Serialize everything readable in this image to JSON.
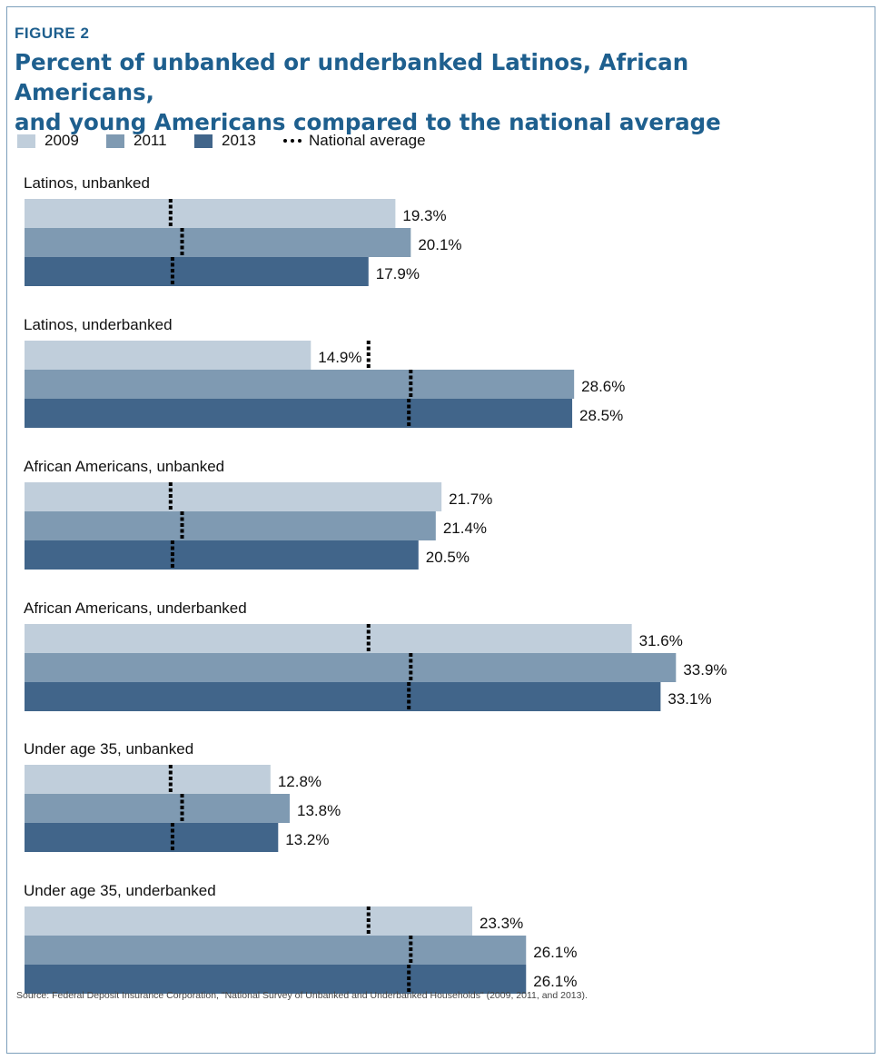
{
  "figure_label": "FIGURE 2",
  "title_line1": "Percent of unbanked or underbanked Latinos, African Americans,",
  "title_line2": "and young Americans compared to the national average",
  "source": "Source: Federal Deposit Insurance Corporation, \"National Survey of Unbanked and Underbanked Households\" (2009, 2011, and 2013).",
  "legend": [
    {
      "label": "2009",
      "color": "#c0cedb",
      "kind": "swatch"
    },
    {
      "label": "2011",
      "color": "#7f9ab2",
      "kind": "swatch"
    },
    {
      "label": "2013",
      "color": "#41658a",
      "kind": "swatch"
    },
    {
      "label": "National average",
      "color": "#000000",
      "kind": "dash"
    }
  ],
  "chart_data": {
    "type": "bar",
    "orientation": "horizontal",
    "xlim": [
      0,
      35
    ],
    "grid": false,
    "legend_position": "top-left",
    "series": [
      {
        "name": "2009",
        "color": "#c0cedb"
      },
      {
        "name": "2011",
        "color": "#7f9ab2"
      },
      {
        "name": "2013",
        "color": "#41658a"
      }
    ],
    "groups": [
      {
        "label": "Latinos, unbanked",
        "values": [
          19.3,
          20.1,
          17.9
        ],
        "value_labels": [
          "19.3%",
          "20.1%",
          "17.9%"
        ],
        "national_average": [
          7.6,
          8.2,
          7.7
        ]
      },
      {
        "label": "Latinos, underbanked",
        "values": [
          14.9,
          28.6,
          28.5
        ],
        "value_labels": [
          "14.9%",
          "28.6%",
          "28.5%"
        ],
        "national_average": [
          17.9,
          20.1,
          20.0
        ]
      },
      {
        "label": "African Americans, unbanked",
        "values": [
          21.7,
          21.4,
          20.5
        ],
        "value_labels": [
          "21.7%",
          "21.4%",
          "20.5%"
        ],
        "national_average": [
          7.6,
          8.2,
          7.7
        ]
      },
      {
        "label": "African Americans, underbanked",
        "values": [
          31.6,
          33.9,
          33.1
        ],
        "value_labels": [
          "31.6%",
          "33.9%",
          "33.1%"
        ],
        "national_average": [
          17.9,
          20.1,
          20.0
        ]
      },
      {
        "label": "Under age 35, unbanked",
        "values": [
          12.8,
          13.8,
          13.2
        ],
        "value_labels": [
          "12.8%",
          "13.8%",
          "13.2%"
        ],
        "national_average": [
          7.6,
          8.2,
          7.7
        ]
      },
      {
        "label": "Under age 35, underbanked",
        "values": [
          23.3,
          26.1,
          26.1
        ],
        "value_labels": [
          "23.3%",
          "26.1%",
          "26.1%"
        ],
        "national_average": [
          17.9,
          20.1,
          20.0
        ]
      }
    ]
  }
}
